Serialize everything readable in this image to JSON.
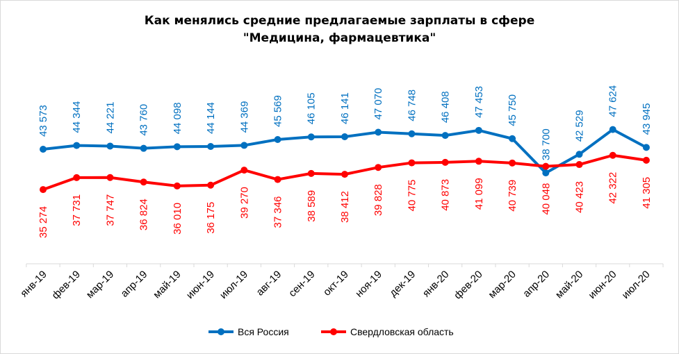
{
  "chart_data": {
    "type": "line",
    "title_line1": "Как менялись средние предлагаемые зарплаты в сфере",
    "title_line2": "\"Медицина, фармацевтика\"",
    "categories": [
      "янв-19",
      "фев-19",
      "мар-19",
      "апр-19",
      "май-19",
      "июн-19",
      "июл-19",
      "авг-19",
      "сен-19",
      "окт-19",
      "ноя-19",
      "дек-19",
      "янв-20",
      "фев-20",
      "мар-20",
      "апр-20",
      "май-20",
      "июн-20",
      "июл-20"
    ],
    "series": [
      {
        "name": "Вся Россия",
        "color": "#0070c0",
        "label_color": "#0070c0",
        "values": [
          43573,
          44344,
          44221,
          43760,
          44098,
          44144,
          44369,
          45569,
          46105,
          46141,
          47070,
          46748,
          46408,
          47453,
          45750,
          38700,
          42529,
          47624,
          43945
        ],
        "labels": [
          "43 573",
          "44 344",
          "44 221",
          "43 760",
          "44 098",
          "44 144",
          "44 369",
          "45 569",
          "46 105",
          "46 141",
          "47 070",
          "46 748",
          "46 408",
          "47 453",
          "45 750",
          "38 700",
          "42 529",
          "47 624",
          "43 945"
        ]
      },
      {
        "name": "Свердловская область",
        "color": "#ff0000",
        "label_color": "#ff0000",
        "values": [
          35274,
          37731,
          37747,
          36824,
          36010,
          36175,
          39270,
          37346,
          38589,
          38412,
          39828,
          40775,
          40873,
          41099,
          40739,
          40048,
          40423,
          42322,
          41305
        ],
        "labels": [
          "35 274",
          "37 731",
          "37 747",
          "36 824",
          "36 010",
          "36 175",
          "39 270",
          "37 346",
          "38 589",
          "38 412",
          "39 828",
          "40 775",
          "40 873",
          "41 099",
          "40 739",
          "40 048",
          "40 423",
          "42 322",
          "41 305"
        ]
      }
    ],
    "ylim": [
      20000,
      60000
    ],
    "y_axis_visible": false,
    "grid": false,
    "legend": "bottom"
  }
}
